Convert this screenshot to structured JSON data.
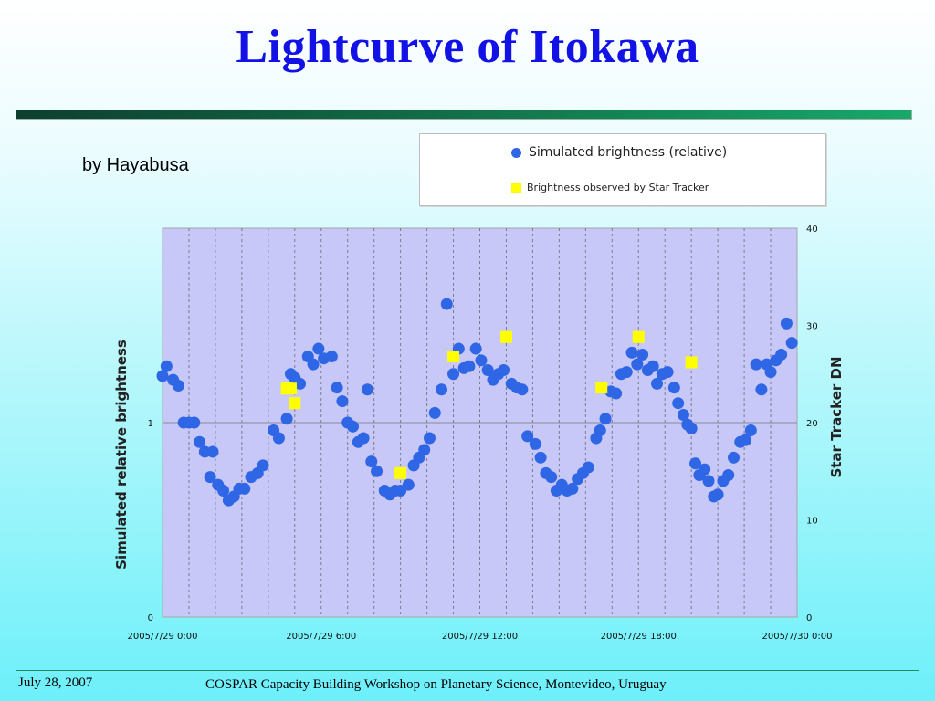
{
  "slide": {
    "title": "Lightcurve of Itokawa",
    "subtitle": "by Hayabusa",
    "footer_date": "July 28, 2007",
    "footer_text": "COSPAR Capacity Building Workshop on Planetary Science, Montevideo, Uruguay"
  },
  "legend": {
    "series1": "Simulated brightness (relative)",
    "series2": "Brightness observed by Star Tracker"
  },
  "colors": {
    "title": "#1212e6",
    "plot_bg": "#c7c8f7",
    "simulated": "#2f66e6",
    "observed": "#ffff00"
  },
  "chart_data": {
    "type": "scatter",
    "xlabel": "",
    "ylabel_left": "Simulated relative brightness",
    "ylabel_right": "Star Tracker DN",
    "x_unit": "hours since 2005/7/29 0:00",
    "xlim": [
      0,
      24
    ],
    "ylim_left": [
      0,
      2
    ],
    "ylim_right": [
      0,
      40
    ],
    "left_ticks": [
      {
        "v": 0,
        "label": "0"
      },
      {
        "v": 1,
        "label": "1"
      }
    ],
    "right_ticks": [
      {
        "v": 0,
        "label": "0"
      },
      {
        "v": 10,
        "label": "10"
      },
      {
        "v": 20,
        "label": "20"
      },
      {
        "v": 30,
        "label": "30"
      },
      {
        "v": 40,
        "label": "40"
      }
    ],
    "x_ticks": [
      {
        "v": 0,
        "label": "2005/7/29 0:00"
      },
      {
        "v": 6,
        "label": "2005/7/29 6:00"
      },
      {
        "v": 12,
        "label": "2005/7/29 12:00"
      },
      {
        "v": 18,
        "label": "2005/7/29 18:00"
      },
      {
        "v": 24,
        "label": "2005/7/30 0:00"
      }
    ],
    "grid": {
      "vertical": "dashed, every 1 hour",
      "horizontal": "at left axis value 1"
    },
    "series": [
      {
        "name": "Simulated brightness (relative)",
        "axis": "left",
        "marker": "circle",
        "points": [
          [
            0.0,
            1.24
          ],
          [
            0.15,
            1.29
          ],
          [
            0.4,
            1.22
          ],
          [
            0.6,
            1.19
          ],
          [
            0.8,
            1.0
          ],
          [
            1.0,
            1.0
          ],
          [
            1.2,
            1.0
          ],
          [
            1.4,
            0.9
          ],
          [
            1.6,
            0.85
          ],
          [
            1.8,
            0.72
          ],
          [
            1.9,
            0.85
          ],
          [
            2.1,
            0.68
          ],
          [
            2.3,
            0.65
          ],
          [
            2.5,
            0.6
          ],
          [
            2.7,
            0.62
          ],
          [
            2.9,
            0.66
          ],
          [
            3.1,
            0.66
          ],
          [
            3.35,
            0.72
          ],
          [
            3.6,
            0.74
          ],
          [
            3.8,
            0.78
          ],
          [
            4.2,
            0.96
          ],
          [
            4.4,
            0.92
          ],
          [
            4.7,
            1.02
          ],
          [
            4.85,
            1.25
          ],
          [
            5.0,
            1.23
          ],
          [
            5.2,
            1.2
          ],
          [
            5.5,
            1.34
          ],
          [
            5.7,
            1.3
          ],
          [
            5.9,
            1.38
          ],
          [
            6.1,
            1.33
          ],
          [
            6.4,
            1.34
          ],
          [
            6.6,
            1.18
          ],
          [
            6.8,
            1.11
          ],
          [
            7.0,
            1.0
          ],
          [
            7.2,
            0.98
          ],
          [
            7.4,
            0.9
          ],
          [
            7.6,
            0.92
          ],
          [
            7.75,
            1.17
          ],
          [
            7.9,
            0.8
          ],
          [
            8.1,
            0.75
          ],
          [
            8.4,
            0.65
          ],
          [
            8.6,
            0.63
          ],
          [
            8.8,
            0.65
          ],
          [
            9.0,
            0.65
          ],
          [
            9.3,
            0.68
          ],
          [
            9.5,
            0.78
          ],
          [
            9.7,
            0.82
          ],
          [
            9.9,
            0.86
          ],
          [
            10.1,
            0.92
          ],
          [
            10.3,
            1.05
          ],
          [
            10.55,
            1.17
          ],
          [
            10.75,
            1.61
          ],
          [
            11.0,
            1.25
          ],
          [
            11.2,
            1.38
          ],
          [
            11.4,
            1.28
          ],
          [
            11.6,
            1.29
          ],
          [
            11.85,
            1.38
          ],
          [
            12.05,
            1.32
          ],
          [
            12.3,
            1.27
          ],
          [
            12.5,
            1.22
          ],
          [
            12.7,
            1.25
          ],
          [
            12.9,
            1.27
          ],
          [
            13.2,
            1.2
          ],
          [
            13.4,
            1.18
          ],
          [
            13.6,
            1.17
          ],
          [
            13.8,
            0.93
          ],
          [
            14.1,
            0.89
          ],
          [
            14.3,
            0.82
          ],
          [
            14.5,
            0.74
          ],
          [
            14.7,
            0.72
          ],
          [
            14.9,
            0.65
          ],
          [
            15.1,
            0.68
          ],
          [
            15.3,
            0.65
          ],
          [
            15.5,
            0.66
          ],
          [
            15.7,
            0.71
          ],
          [
            15.9,
            0.74
          ],
          [
            16.1,
            0.77
          ],
          [
            16.4,
            0.92
          ],
          [
            16.55,
            0.96
          ],
          [
            16.75,
            1.02
          ],
          [
            16.95,
            1.16
          ],
          [
            17.15,
            1.15
          ],
          [
            17.35,
            1.25
          ],
          [
            17.55,
            1.26
          ],
          [
            17.75,
            1.36
          ],
          [
            17.95,
            1.3
          ],
          [
            18.15,
            1.35
          ],
          [
            18.35,
            1.27
          ],
          [
            18.55,
            1.29
          ],
          [
            18.7,
            1.2
          ],
          [
            18.9,
            1.25
          ],
          [
            19.1,
            1.26
          ],
          [
            19.35,
            1.18
          ],
          [
            19.5,
            1.1
          ],
          [
            19.7,
            1.04
          ],
          [
            19.85,
            0.99
          ],
          [
            20.0,
            0.97
          ],
          [
            20.15,
            0.79
          ],
          [
            20.3,
            0.73
          ],
          [
            20.5,
            0.76
          ],
          [
            20.65,
            0.7
          ],
          [
            20.85,
            0.62
          ],
          [
            21.0,
            0.63
          ],
          [
            21.2,
            0.7
          ],
          [
            21.4,
            0.73
          ],
          [
            21.6,
            0.82
          ],
          [
            21.85,
            0.9
          ],
          [
            22.05,
            0.91
          ],
          [
            22.25,
            0.96
          ],
          [
            22.45,
            1.3
          ],
          [
            22.65,
            1.17
          ],
          [
            22.85,
            1.3
          ],
          [
            23.0,
            1.26
          ],
          [
            23.2,
            1.32
          ],
          [
            23.4,
            1.35
          ],
          [
            23.6,
            1.51
          ],
          [
            23.8,
            1.41
          ]
        ]
      },
      {
        "name": "Brightness observed by Star Tracker",
        "axis": "right",
        "marker": "square",
        "points": [
          [
            4.7,
            23.5
          ],
          [
            4.85,
            23.5
          ],
          [
            5.0,
            22.0
          ],
          [
            9.0,
            14.8
          ],
          [
            11.0,
            26.8
          ],
          [
            13.0,
            28.8
          ],
          [
            16.6,
            23.6
          ],
          [
            18.0,
            28.8
          ],
          [
            20.0,
            26.2
          ]
        ]
      }
    ]
  }
}
